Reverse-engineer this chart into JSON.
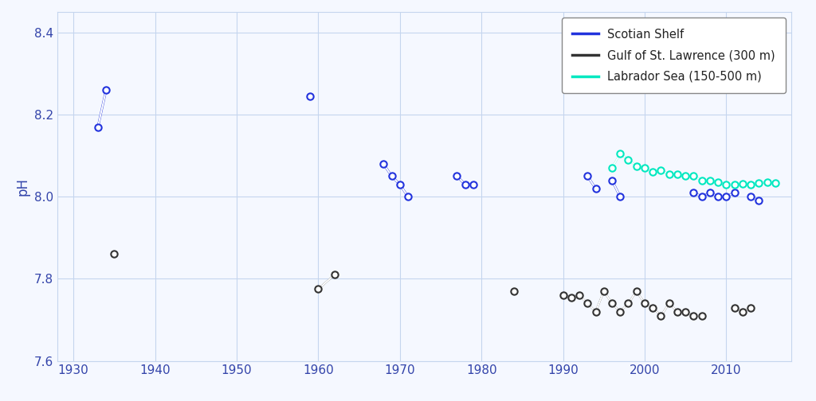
{
  "title": "",
  "xlabel": "",
  "ylabel": "pH",
  "xlim": [
    1928,
    2018
  ],
  "ylim": [
    7.6,
    8.45
  ],
  "yticks": [
    7.6,
    7.8,
    8.0,
    8.2,
    8.4
  ],
  "xticks": [
    1930,
    1940,
    1950,
    1960,
    1970,
    1980,
    1990,
    2000,
    2010
  ],
  "background_color": "#f5f8ff",
  "grid_color": "#c5d5ee",
  "tick_color": "#3344aa",
  "scotian_shelf": {
    "color": "#2233dd",
    "segments": [
      {
        "years": [
          1933,
          1934
        ],
        "ph": [
          8.17,
          8.26
        ]
      },
      {
        "years": [
          1959
        ],
        "ph": [
          8.245
        ]
      },
      {
        "years": [
          1968,
          1969,
          1970,
          1971
        ],
        "ph": [
          8.08,
          8.05,
          8.03,
          8.0
        ]
      },
      {
        "years": [
          1977,
          1978,
          1979
        ],
        "ph": [
          8.05,
          8.03,
          8.03
        ]
      },
      {
        "years": [
          1993,
          1994
        ],
        "ph": [
          8.05,
          8.02
        ]
      },
      {
        "years": [
          1996,
          1997
        ],
        "ph": [
          8.04,
          8.0
        ]
      },
      {
        "years": [
          2006,
          2007,
          2008,
          2009,
          2010,
          2011
        ],
        "ph": [
          8.01,
          8.0,
          8.01,
          8.0,
          8.0,
          8.01
        ]
      },
      {
        "years": [
          2013,
          2014
        ],
        "ph": [
          8.0,
          7.99
        ]
      }
    ]
  },
  "gulf_stl": {
    "color": "#333333",
    "segments": [
      {
        "years": [
          1935
        ],
        "ph": [
          7.86
        ]
      },
      {
        "years": [
          1960,
          1962
        ],
        "ph": [
          7.775,
          7.81
        ]
      },
      {
        "years": [
          1984
        ],
        "ph": [
          7.77
        ]
      },
      {
        "years": [
          1990,
          1991,
          1992,
          1993,
          1994,
          1995,
          1996,
          1997,
          1998,
          1999,
          2000,
          2001,
          2002,
          2003,
          2004,
          2005,
          2006,
          2007
        ],
        "ph": [
          7.76,
          7.755,
          7.76,
          7.74,
          7.72,
          7.77,
          7.74,
          7.72,
          7.74,
          7.77,
          7.74,
          7.73,
          7.71,
          7.74,
          7.72,
          7.72,
          7.71,
          7.71
        ]
      },
      {
        "years": [
          2011,
          2012,
          2013
        ],
        "ph": [
          7.73,
          7.72,
          7.73
        ]
      }
    ]
  },
  "labrador": {
    "color": "#00e8c0",
    "years": [
      1996,
      1997,
      1998,
      1999,
      2000,
      2001,
      2002,
      2003,
      2004,
      2005,
      2006,
      2007,
      2008,
      2009,
      2010,
      2011,
      2012,
      2013,
      2014,
      2015,
      2016
    ],
    "ph": [
      8.07,
      8.105,
      8.09,
      8.075,
      8.07,
      8.06,
      8.065,
      8.055,
      8.055,
      8.05,
      8.05,
      8.04,
      8.04,
      8.035,
      8.03,
      8.03,
      8.032,
      8.03,
      8.033,
      8.035,
      8.033
    ]
  },
  "legend": {
    "scotian_label": "Scotian Shelf",
    "gulf_label": "Gulf of St. Lawrence (300 m)",
    "labrador_label": "Labrador Sea (150-500 m)"
  }
}
